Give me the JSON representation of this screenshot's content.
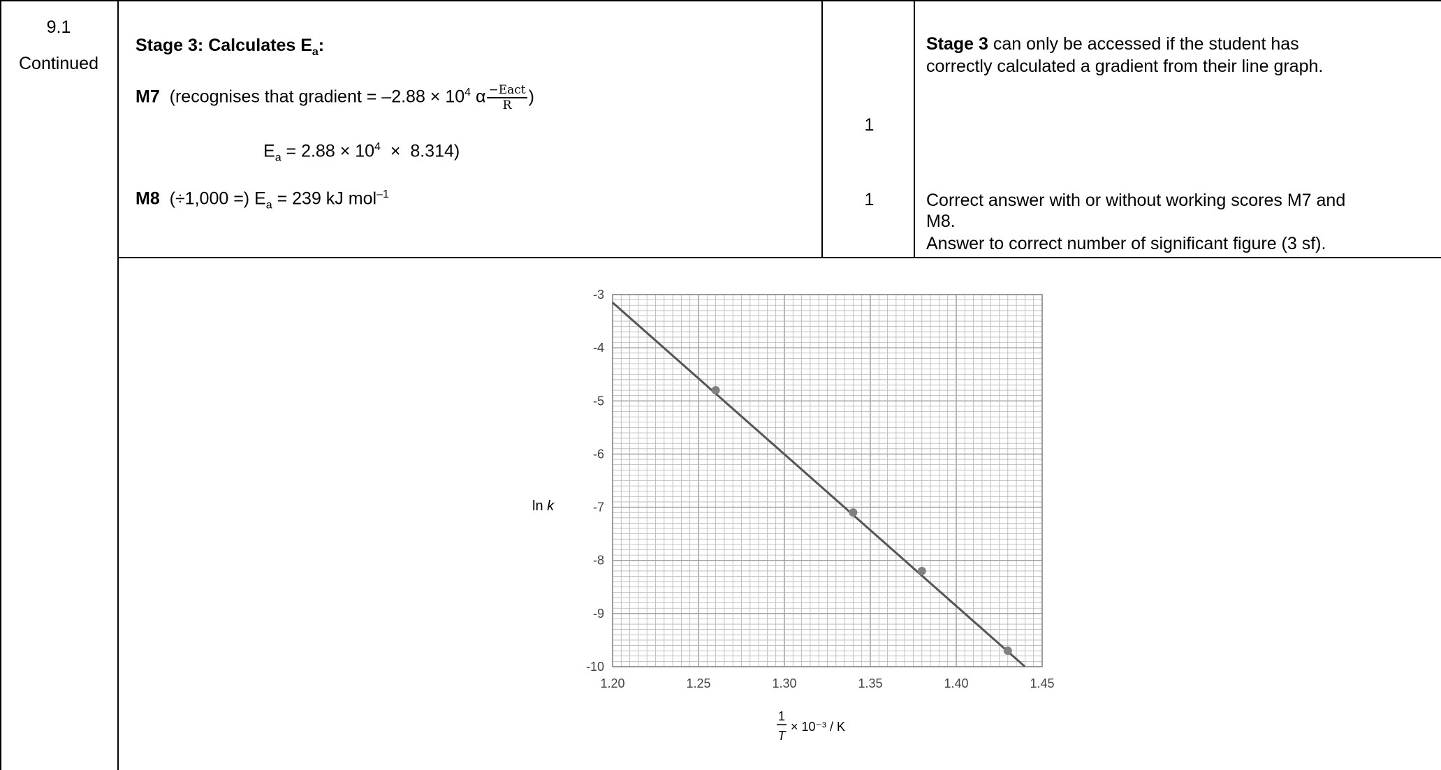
{
  "question": {
    "number": "9.1",
    "continued": "Continued"
  },
  "stage": {
    "heading": "Stage 3: Calculates E",
    "heading_sub": "a",
    "heading_colon": ":",
    "m7": {
      "label": "M7",
      "text": "(recognises that gradient = –2.88 × 10",
      "exp": "4",
      "alpha": "α",
      "frac_num": "−Eact",
      "frac_den": "R",
      "close": ")",
      "mark": "1"
    },
    "ea_line": {
      "e": "E",
      "sub": "a",
      "text": " = 2.88 × 10",
      "exp": "4",
      "rest": "  ×  8.314)"
    },
    "m8": {
      "label": "M8",
      "text1": "(÷1,000 =) E",
      "sub": "a",
      "text2": " = 239 kJ mol",
      "exp": "–1",
      "mark": "1"
    }
  },
  "guidance": {
    "stage_bold": "Stage 3",
    "line1_rest": " can only be accessed if the student has",
    "line2": "correctly calculated a gradient from their line graph.",
    "correct1": "Correct answer with or without working scores M7 and",
    "correct2": "M8.",
    "correct3": "Answer to correct number of significant figure (3 sf)."
  },
  "chart_data": {
    "type": "line",
    "xlabel_num": "1",
    "xlabel_den": "T",
    "xlabel_rest": "× 10⁻³ / K",
    "ylabel": "ln",
    "ylabel_italic": "k",
    "xlim": [
      1.2,
      1.45
    ],
    "ylim": [
      -10,
      -3
    ],
    "x_ticks": [
      "1.20",
      "1.25",
      "1.30",
      "1.35",
      "1.40",
      "1.45"
    ],
    "y_ticks": [
      "-3",
      "-4",
      "-5",
      "-6",
      "-7",
      "-8",
      "-9",
      "-10"
    ],
    "grid": true,
    "points": [
      {
        "x": 1.26,
        "y": -4.8
      },
      {
        "x": 1.34,
        "y": -7.1
      },
      {
        "x": 1.38,
        "y": -8.2
      },
      {
        "x": 1.43,
        "y": -9.7
      }
    ],
    "line": [
      {
        "x": 1.2,
        "y": -3.15
      },
      {
        "x": 1.44,
        "y": -10.0
      }
    ],
    "line_color": "#555555",
    "point_color": "#808080",
    "grid_color": "#b4b4b4"
  }
}
